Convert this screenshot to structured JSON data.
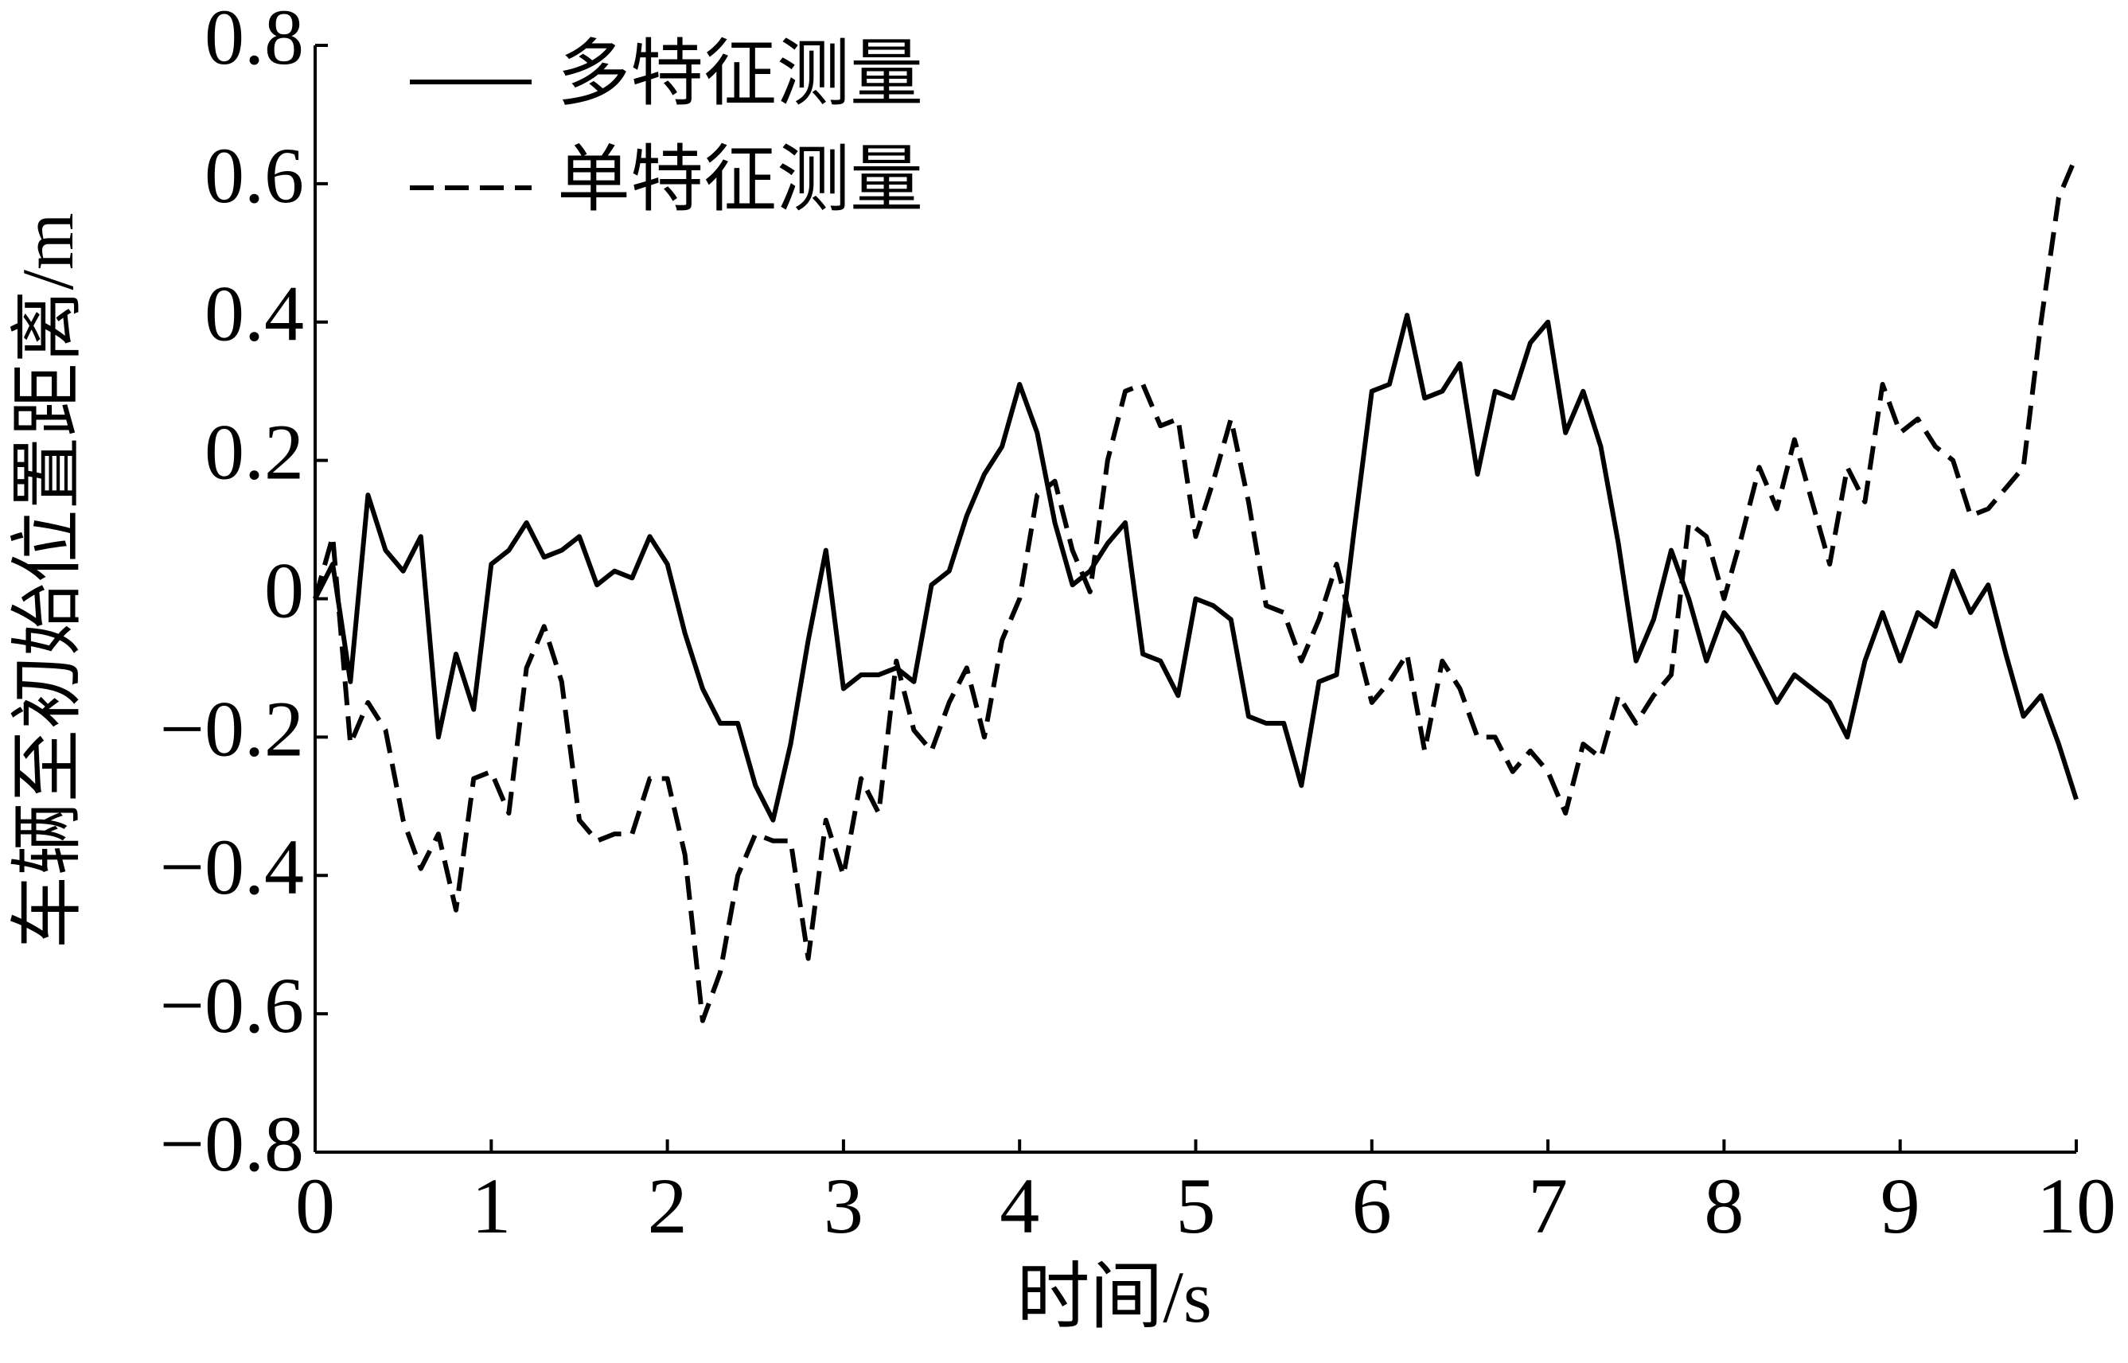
{
  "chart_data": {
    "type": "line",
    "xlabel": "时间/s",
    "ylabel": "车辆至初始位置距离/m",
    "legend": "upper left",
    "xlim": [
      0,
      10
    ],
    "ylim": [
      -0.8,
      0.8
    ],
    "xticks": [
      0,
      1,
      2,
      3,
      4,
      5,
      6,
      7,
      8,
      9,
      10
    ],
    "yticks": [
      {
        "value": -0.8,
        "label": "−0.8"
      },
      {
        "value": -0.6,
        "label": "−0.6"
      },
      {
        "value": -0.4,
        "label": "−0.4"
      },
      {
        "value": -0.2,
        "label": "−0.2"
      },
      0,
      0.2,
      0.4,
      0.6,
      0.8
    ],
    "x": [
      0,
      0.1,
      0.2,
      0.3,
      0.4,
      0.5,
      0.6,
      0.7,
      0.8,
      0.9,
      1,
      1.1,
      1.2,
      1.3,
      1.4,
      1.5,
      1.6,
      1.7,
      1.8,
      1.9,
      2,
      2.1,
      2.2,
      2.3,
      2.4,
      2.5,
      2.6,
      2.7,
      2.8,
      2.9,
      3,
      3.1,
      3.2,
      3.3,
      3.4,
      3.5,
      3.6,
      3.7,
      3.8,
      3.9,
      4,
      4.1,
      4.2,
      4.3,
      4.4,
      4.5,
      4.6,
      4.7,
      4.8,
      4.9,
      5,
      5.1,
      5.2,
      5.3,
      5.4,
      5.5,
      5.6,
      5.7,
      5.8,
      5.9,
      6,
      6.1,
      6.2,
      6.3,
      6.4,
      6.5,
      6.6,
      6.7,
      6.8,
      6.9,
      7,
      7.1,
      7.2,
      7.3,
      7.4,
      7.5,
      7.6,
      7.7,
      7.8,
      7.9,
      8,
      8.1,
      8.2,
      8.3,
      8.4,
      8.5,
      8.6,
      8.7,
      8.8,
      8.9,
      9,
      9.1,
      9.2,
      9.3,
      9.4,
      9.5,
      9.6,
      9.7,
      9.8,
      9.9,
      10
    ],
    "series": [
      {
        "name": "多特征测量",
        "color": "#000000",
        "dash": "solid",
        "values": [
          0,
          0.05,
          -0.12,
          0.15,
          0.07,
          0.04,
          0.09,
          -0.2,
          -0.08,
          -0.16,
          0.05,
          0.07,
          0.11,
          0.06,
          0.07,
          0.09,
          0.02,
          0.04,
          0.03,
          0.09,
          0.05,
          -0.05,
          -0.13,
          -0.18,
          -0.18,
          -0.27,
          -0.32,
          -0.21,
          -0.06,
          0.07,
          -0.13,
          -0.11,
          -0.11,
          -0.1,
          -0.12,
          0.02,
          0.04,
          0.12,
          0.18,
          0.22,
          0.31,
          0.24,
          0.11,
          0.02,
          0.04,
          0.08,
          0.11,
          -0.08,
          -0.09,
          -0.14,
          0,
          -0.01,
          -0.03,
          -0.17,
          -0.18,
          -0.18,
          -0.27,
          -0.12,
          -0.11,
          0.1,
          0.3,
          0.31,
          0.41,
          0.29,
          0.3,
          0.34,
          0.18,
          0.3,
          0.29,
          0.37,
          0.4,
          0.24,
          0.3,
          0.22,
          0.08,
          -0.09,
          -0.03,
          0.07,
          0,
          -0.09,
          -0.02,
          -0.05,
          -0.1,
          -0.15,
          -0.11,
          -0.13,
          -0.15,
          -0.2,
          -0.09,
          -0.02,
          -0.09,
          -0.02,
          -0.04,
          0.04,
          -0.02,
          0.02,
          -0.08,
          -0.17,
          -0.14,
          -0.21,
          -0.29
        ]
      },
      {
        "name": "单特征测量",
        "color": "#000000",
        "dash": "dashed",
        "values": [
          0,
          0.09,
          -0.21,
          -0.15,
          -0.19,
          -0.32,
          -0.39,
          -0.34,
          -0.45,
          -0.26,
          -0.25,
          -0.31,
          -0.1,
          -0.04,
          -0.12,
          -0.32,
          -0.35,
          -0.34,
          -0.34,
          -0.26,
          -0.26,
          -0.37,
          -0.61,
          -0.54,
          -0.4,
          -0.34,
          -0.35,
          -0.35,
          -0.52,
          -0.32,
          -0.4,
          -0.26,
          -0.31,
          -0.09,
          -0.19,
          -0.22,
          -0.15,
          -0.1,
          -0.2,
          -0.06,
          0,
          0.15,
          0.17,
          0.07,
          0.01,
          0.2,
          0.3,
          0.31,
          0.25,
          0.26,
          0.09,
          0.17,
          0.26,
          0.14,
          -0.01,
          -0.02,
          -0.09,
          -0.03,
          0.05,
          -0.05,
          -0.15,
          -0.12,
          -0.08,
          -0.22,
          -0.09,
          -0.13,
          -0.2,
          -0.2,
          -0.25,
          -0.22,
          -0.25,
          -0.31,
          -0.21,
          -0.23,
          -0.14,
          -0.18,
          -0.14,
          -0.11,
          0.11,
          0.09,
          0,
          0.09,
          0.19,
          0.13,
          0.23,
          0.14,
          0.05,
          0.19,
          0.14,
          0.31,
          0.24,
          0.26,
          0.22,
          0.2,
          0.12,
          0.13,
          0.16,
          0.19,
          0.4,
          0.58,
          0.64
        ]
      }
    ]
  }
}
